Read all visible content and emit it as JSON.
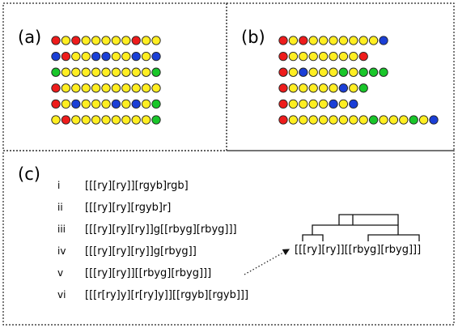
{
  "palette": {
    "r": "#ee1c1c",
    "y": "#ffee22",
    "b": "#1b3fd6",
    "g": "#19c62a"
  },
  "panel_a": {
    "label": "(a)",
    "rows": [
      "ryryyyyyryy",
      "bryybbyybyb",
      "gyyyyyyyyyg",
      "ryyyyyyyyyy",
      "rybyyybybyg",
      "yryyyyyyyyg"
    ]
  },
  "panel_b": {
    "label": "(b)",
    "rows": [
      "ryryyyyyyyb",
      "ryyyyyyyr",
      "rybyyygyggg",
      "ryyyyybyg",
      "ryyyybyb",
      "ryyyyyyyygyyygyb"
    ]
  },
  "panel_c": {
    "label": "(c)",
    "items": [
      {
        "numeral": "i",
        "formula": "[[[ry][ry]][rgyb]rgb]"
      },
      {
        "numeral": "ii",
        "formula": "[[[ry][ry][rgyb]r]"
      },
      {
        "numeral": "iii",
        "formula": "[[[ry][ry][ry]]g[[rbyg][rbyg]]]"
      },
      {
        "numeral": "iv",
        "formula": "[[[ry][ry][ry]]g[rbyg]]"
      },
      {
        "numeral": "v",
        "formula": "[[[ry][ry]][[rbyg][rbyg]]]"
      },
      {
        "numeral": "vi",
        "formula": "[[[r[ry]y][r[ry]y]][[rgyb][rgyb]]]"
      }
    ],
    "tree_formula": "[[[ry][ry]][[rbyg][rbyg]]]"
  }
}
